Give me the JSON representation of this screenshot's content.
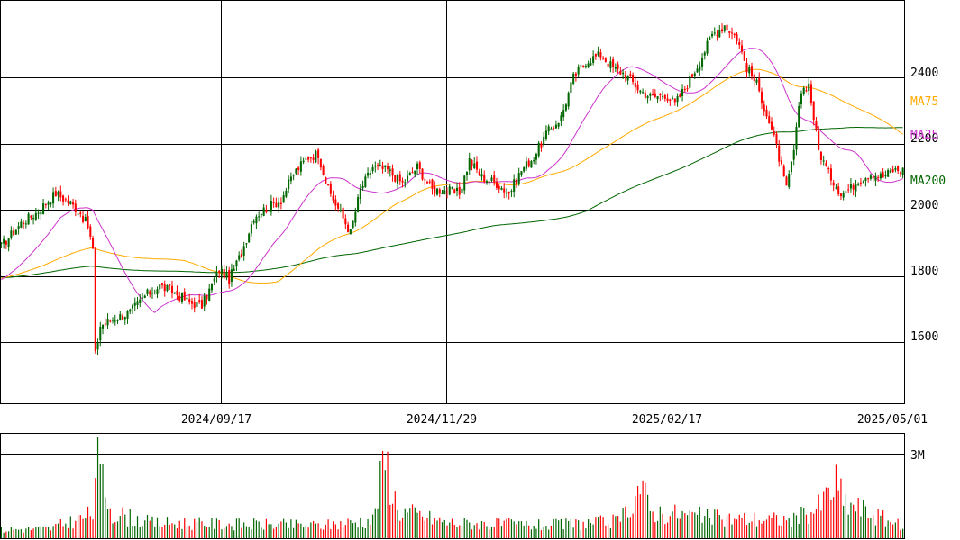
{
  "chart_data": {
    "type": "candlestick",
    "price_axis": {
      "ticks": [
        1600,
        1800,
        2000,
        2200,
        2400
      ],
      "ylim": [
        1415,
        2635
      ]
    },
    "x_axis": {
      "date_labels": [
        "2024/09/17",
        "2024/11/29",
        "2025/02/17",
        "2025/05/01"
      ]
    },
    "moving_averages": [
      {
        "name": "MA25",
        "label": "MA25",
        "color": "#cc33cc"
      },
      {
        "name": "MA75",
        "label": "MA75",
        "color": "#ffaa00"
      },
      {
        "name": "MA200",
        "label": "MA200",
        "color": "#006600"
      }
    ],
    "colors": {
      "up": "#006600",
      "down": "#ff0000",
      "grid": "#000000"
    },
    "volume": {
      "ticks": [
        "3M"
      ],
      "tick_values": [
        3000000
      ],
      "ymax": 3720000,
      "up_color": "#006600",
      "down_color": "#ff0000"
    },
    "candles_anchor": [
      [
        0,
        1890
      ],
      [
        8,
        1960
      ],
      [
        14,
        1990
      ],
      [
        22,
        2050
      ],
      [
        28,
        2020
      ],
      [
        32,
        1990
      ],
      [
        35,
        1950
      ],
      [
        37,
        1880
      ],
      [
        38,
        1560
      ],
      [
        40,
        1650
      ],
      [
        45,
        1670
      ],
      [
        52,
        1690
      ],
      [
        58,
        1740
      ],
      [
        64,
        1770
      ],
      [
        70,
        1750
      ],
      [
        76,
        1720
      ],
      [
        81,
        1710
      ],
      [
        88,
        1820
      ],
      [
        92,
        1790
      ],
      [
        97,
        1870
      ],
      [
        102,
        1980
      ],
      [
        108,
        2010
      ],
      [
        113,
        2030
      ],
      [
        118,
        2110
      ],
      [
        124,
        2160
      ],
      [
        128,
        2170
      ],
      [
        132,
        2060
      ],
      [
        137,
        1990
      ],
      [
        141,
        1930
      ],
      [
        145,
        2060
      ],
      [
        150,
        2130
      ],
      [
        156,
        2120
      ],
      [
        162,
        2080
      ],
      [
        168,
        2130
      ],
      [
        174,
        2060
      ],
      [
        179,
        2060
      ],
      [
        185,
        2050
      ],
      [
        189,
        2150
      ],
      [
        194,
        2100
      ],
      [
        200,
        2080
      ],
      [
        205,
        2050
      ],
      [
        210,
        2120
      ],
      [
        215,
        2160
      ],
      [
        220,
        2230
      ],
      [
        226,
        2280
      ],
      [
        231,
        2400
      ],
      [
        236,
        2450
      ],
      [
        242,
        2470
      ],
      [
        247,
        2430
      ],
      [
        252,
        2410
      ],
      [
        258,
        2360
      ],
      [
        263,
        2340
      ],
      [
        268,
        2350
      ],
      [
        272,
        2320
      ],
      [
        277,
        2380
      ],
      [
        282,
        2450
      ],
      [
        287,
        2530
      ],
      [
        292,
        2560
      ],
      [
        297,
        2520
      ],
      [
        301,
        2430
      ],
      [
        305,
        2380
      ],
      [
        309,
        2290
      ],
      [
        313,
        2190
      ],
      [
        317,
        2060
      ],
      [
        320,
        2180
      ],
      [
        323,
        2360
      ],
      [
        326,
        2380
      ],
      [
        330,
        2180
      ],
      [
        334,
        2110
      ],
      [
        339,
        2050
      ],
      [
        342,
        2060
      ],
      [
        346,
        2090
      ],
      [
        351,
        2110
      ],
      [
        356,
        2100
      ],
      [
        360,
        2120
      ],
      [
        364,
        2120
      ]
    ],
    "volume_anchor": [
      [
        0,
        0.3
      ],
      [
        20,
        0.35
      ],
      [
        37,
        0.85
      ],
      [
        38,
        2.85
      ],
      [
        40,
        2.2
      ],
      [
        45,
        0.9
      ],
      [
        60,
        0.55
      ],
      [
        90,
        0.5
      ],
      [
        130,
        0.45
      ],
      [
        150,
        0.65
      ],
      [
        155,
        2.85
      ],
      [
        160,
        1.0
      ],
      [
        180,
        0.55
      ],
      [
        220,
        0.45
      ],
      [
        250,
        0.6
      ],
      [
        258,
        1.9
      ],
      [
        262,
        0.95
      ],
      [
        290,
        0.7
      ],
      [
        320,
        0.65
      ],
      [
        330,
        1.1
      ],
      [
        337,
        1.95
      ],
      [
        340,
        1.3
      ],
      [
        364,
        0.4
      ]
    ]
  }
}
